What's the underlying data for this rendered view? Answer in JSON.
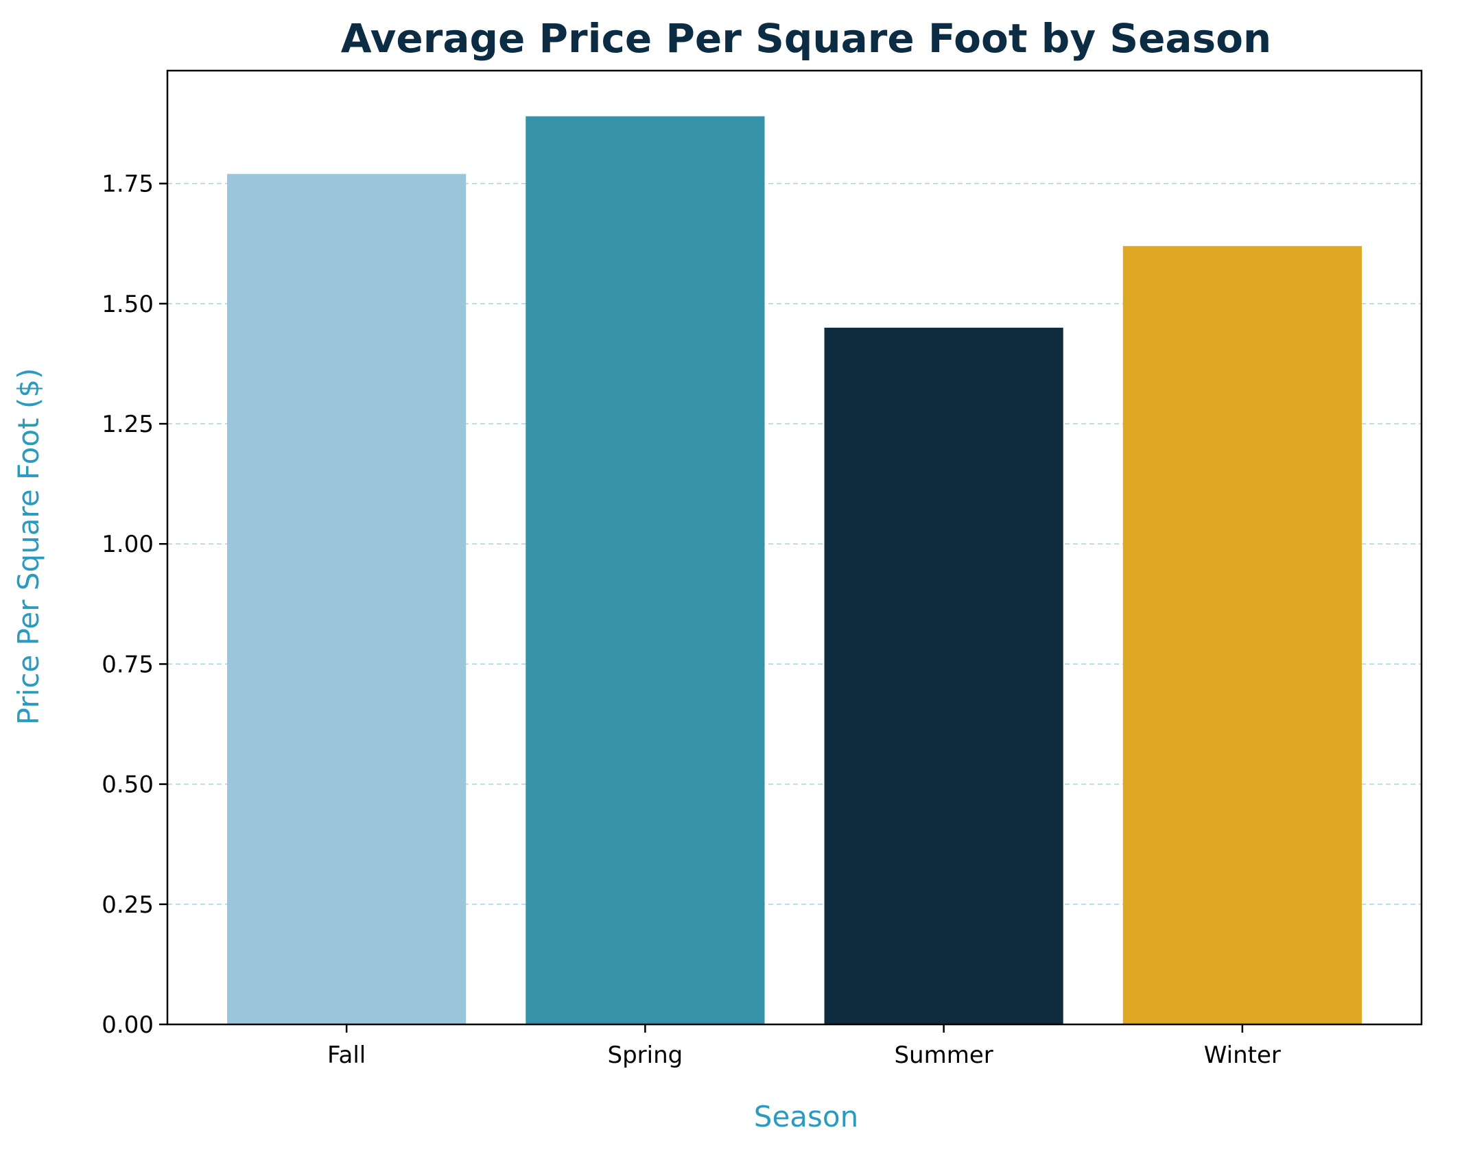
{
  "chart_data": {
    "type": "bar",
    "title": "Average Price Per Square Foot by Season",
    "xlabel": "Season",
    "ylabel": "Price Per Square Foot ($)",
    "categories": [
      "Fall",
      "Spring",
      "Summer",
      "Winter"
    ],
    "values": [
      1.77,
      1.89,
      1.45,
      1.62
    ],
    "bar_colors": [
      "#9ac5da",
      "#3592a9",
      "#0f2c3e",
      "#dfa823"
    ],
    "ylim": [
      0,
      1.985
    ],
    "yticks": [
      0.0,
      0.25,
      0.5,
      0.75,
      1.0,
      1.25,
      1.5,
      1.75
    ],
    "ytick_labels": [
      "0.00",
      "0.25",
      "0.50",
      "0.75",
      "1.00",
      "1.25",
      "1.50",
      "1.75"
    ],
    "grid": "y-dashed",
    "legend": "none",
    "colors": {
      "title": "#0b2c42",
      "axis_label": "#2a9bbf",
      "grid": "#a7d3e1"
    }
  }
}
